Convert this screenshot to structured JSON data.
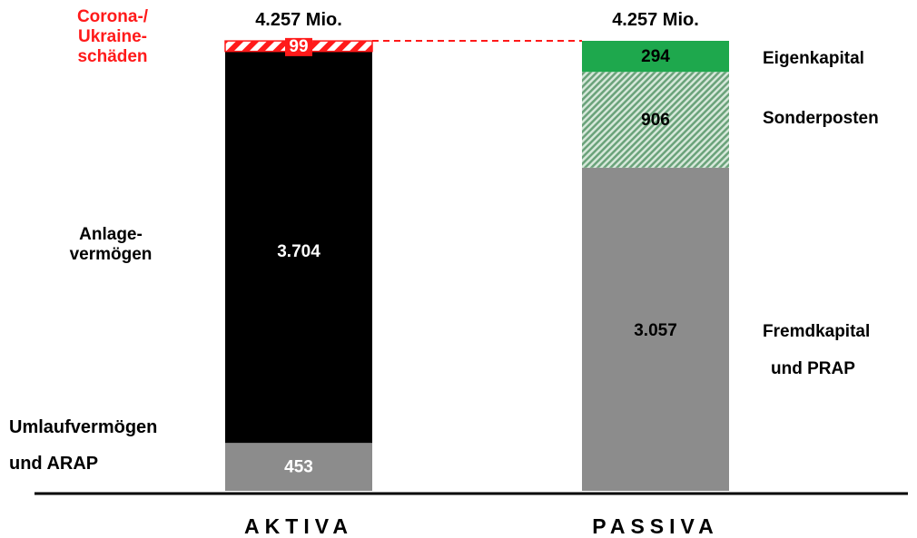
{
  "chart_data": {
    "type": "bar",
    "stacked": true,
    "unit_label": "Mio.",
    "categories": [
      "AKTIVA",
      "PASSIVA"
    ],
    "totals": [
      "4.257 Mio.",
      "4.257 Mio."
    ],
    "ylim": [
      0,
      4257
    ],
    "stacks": [
      {
        "category": "AKTIVA",
        "segments": [
          {
            "label": "Umlaufvermögen und ARAP",
            "label_lines": [
              "Umlaufvermögen",
              "und ARAP"
            ],
            "value": 453,
            "display": "453",
            "color": "#8c8c8c",
            "pattern": "solid"
          },
          {
            "label": "Anlagevermögen",
            "label_lines": [
              "Anlage-",
              "vermögen"
            ],
            "value": 3704,
            "display": "3.704",
            "color": "#000000",
            "pattern": "solid"
          },
          {
            "label": "Corona-/Ukraineschäden",
            "label_lines": [
              "Corona-/",
              "Ukraine-",
              "schäden"
            ],
            "value": 99,
            "display": "99",
            "color": "#ff1a1a",
            "pattern": "hatch-red"
          }
        ]
      },
      {
        "category": "PASSIVA",
        "segments": [
          {
            "label": "Fremdkapital und PRAP",
            "label_lines": [
              "Fremdkapital",
              "und PRAP"
            ],
            "value": 3057,
            "display": "3.057",
            "color": "#8c8c8c",
            "pattern": "solid"
          },
          {
            "label": "Sonderposten",
            "label_lines": [
              "Sonderposten"
            ],
            "value": 906,
            "display": "906",
            "color": "#6aa27a",
            "pattern": "hatch-green"
          },
          {
            "label": "Eigenkapital",
            "label_lines": [
              "Eigenkapital"
            ],
            "value": 294,
            "display": "294",
            "color": "#1ea84d",
            "pattern": "solid"
          }
        ]
      }
    ]
  }
}
